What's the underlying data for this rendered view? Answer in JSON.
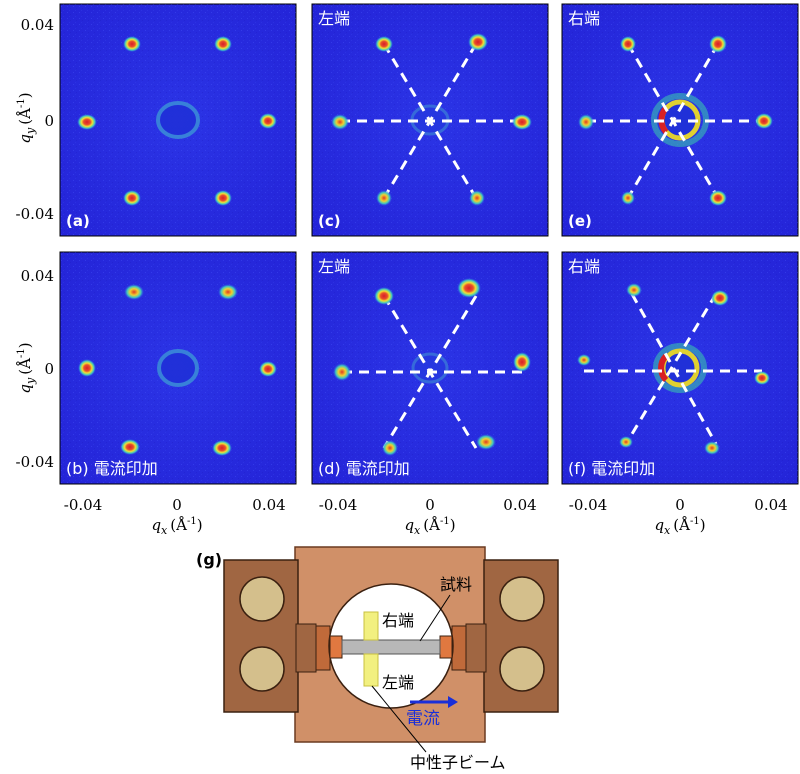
{
  "figure": {
    "ylabel_q": "q",
    "ylabel_sub": "y",
    "ylabel_unit": "(Å",
    "ylabel_exp": "-1",
    "ylabel_close": ")",
    "xlabel_q": "q",
    "xlabel_sub": "x",
    "xlabel_unit": "(Å",
    "xlabel_exp": "-1",
    "xlabel_close": ")",
    "yticks": [
      "0.04",
      "0",
      "-0.04"
    ],
    "xticks": [
      "-0.04",
      "0",
      "0.04"
    ]
  },
  "panels": [
    {
      "id": "a",
      "label": "(a)",
      "title": ""
    },
    {
      "id": "c",
      "label": "(c)",
      "title": "左端"
    },
    {
      "id": "e",
      "label": "(e)",
      "title": "右端"
    },
    {
      "id": "b",
      "label": "(b) 電流印加",
      "title": ""
    },
    {
      "id": "d",
      "label": "(d) 電流印加",
      "title": "左端"
    },
    {
      "id": "f",
      "label": "(f) 電流印加",
      "title": "右端"
    }
  ],
  "diagram": {
    "label": "(g)",
    "sample": "試料",
    "right_end": "右端",
    "left_end": "左端",
    "current": "電流",
    "beam": "中性子ビーム",
    "colors": {
      "holder": "#d09068",
      "clamp": "#a06642",
      "screw": "#d4bf8c",
      "current_arrow": "#1a2fd8",
      "beam": "#f2f080"
    }
  },
  "colors": {
    "background": "#2626e0",
    "spot_hot": "#d8242a",
    "spot_warm": "#f0e020",
    "spot_mid": "#36c8c0"
  }
}
